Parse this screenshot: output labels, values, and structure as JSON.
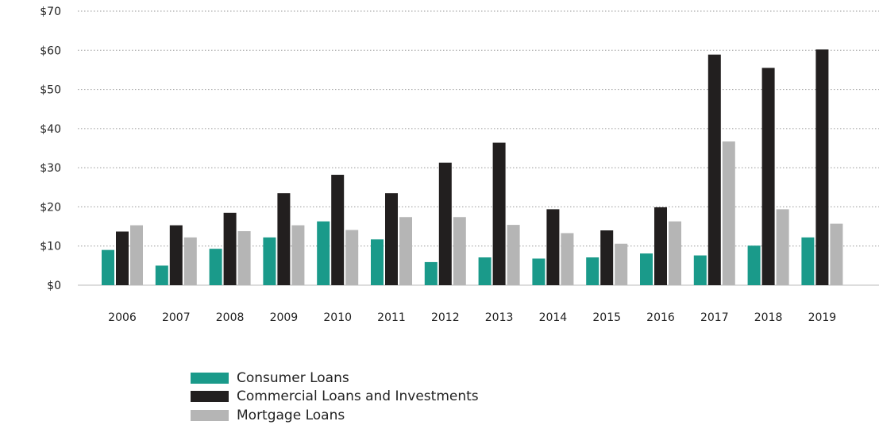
{
  "chart_data": {
    "type": "bar",
    "categories": [
      "2006",
      "2007",
      "2008",
      "2009",
      "2010",
      "2011",
      "2012",
      "2013",
      "2014",
      "2015",
      "2016",
      "2017",
      "2018",
      "2019"
    ],
    "series": [
      {
        "name": "Consumer Loans",
        "color": "#1a9a8a",
        "values": [
          9,
          5,
          9.3,
          12.2,
          16.3,
          11.7,
          5.9,
          7.1,
          6.8,
          7.1,
          8.1,
          7.6,
          10.1,
          12.2
        ]
      },
      {
        "name": "Commercial Loans and Investments",
        "color": "#221f1f",
        "values": [
          13.7,
          15.3,
          18.5,
          23.5,
          28.2,
          23.5,
          31.3,
          36.4,
          19.4,
          14,
          19.9,
          58.9,
          55.5,
          60.2
        ]
      },
      {
        "name": "Mortgage Loans",
        "color": "#b5b5b5",
        "values": [
          15.3,
          12.2,
          13.8,
          15.3,
          14.1,
          17.4,
          17.4,
          15.4,
          13.3,
          10.6,
          16.3,
          36.7,
          19.4,
          15.7
        ]
      }
    ],
    "y_tick_labels": [
      "$0",
      "$10",
      "$20",
      "$30",
      "$40",
      "$50",
      "$60",
      "$70"
    ],
    "ylim": [
      0,
      70
    ],
    "y_tick_step": 10,
    "grid": "horizontal dotted",
    "legend_position": "bottom-left"
  }
}
